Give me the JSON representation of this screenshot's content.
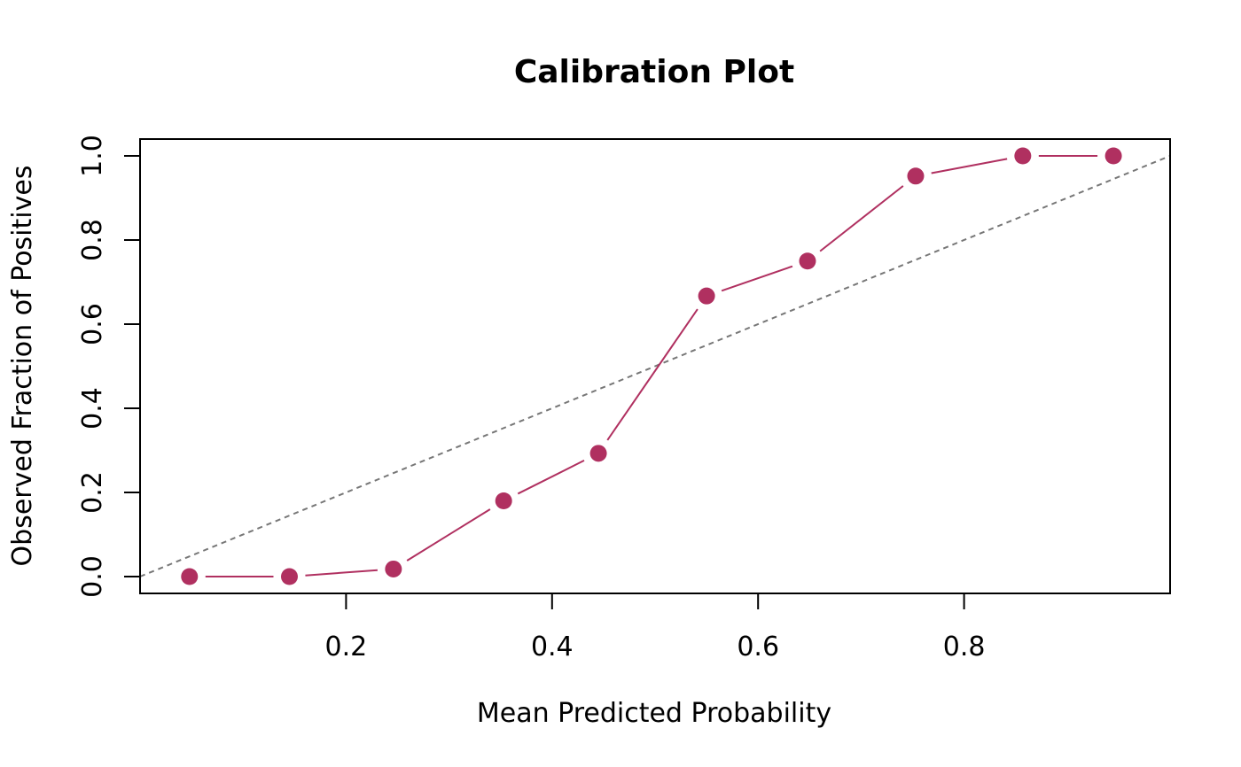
{
  "chart_data": {
    "type": "line",
    "title": "Calibration Plot",
    "xlabel": "Mean Predicted Probability",
    "ylabel": "Observed Fraction of Positives",
    "xlim": [
      0.0,
      1.0
    ],
    "ylim": [
      -0.04,
      1.04
    ],
    "xticks": [
      "0.2",
      "0.4",
      "0.6",
      "0.8"
    ],
    "yticks": [
      "0.0",
      "0.2",
      "0.4",
      "0.6",
      "0.8",
      "1.0"
    ],
    "grid": false,
    "series": [
      {
        "x": [
          0.048,
          0.145,
          0.246,
          0.353,
          0.445,
          0.55,
          0.648,
          0.753,
          0.857,
          0.945
        ],
        "y": [
          0.0,
          0.0,
          0.018,
          0.18,
          0.293,
          0.667,
          0.75,
          0.952,
          1.0,
          1.0
        ],
        "color": "#B03060"
      }
    ],
    "reference_line": {
      "x": [
        0,
        1
      ],
      "y": [
        0,
        1
      ],
      "style": "dashed",
      "color": "#777777"
    }
  }
}
